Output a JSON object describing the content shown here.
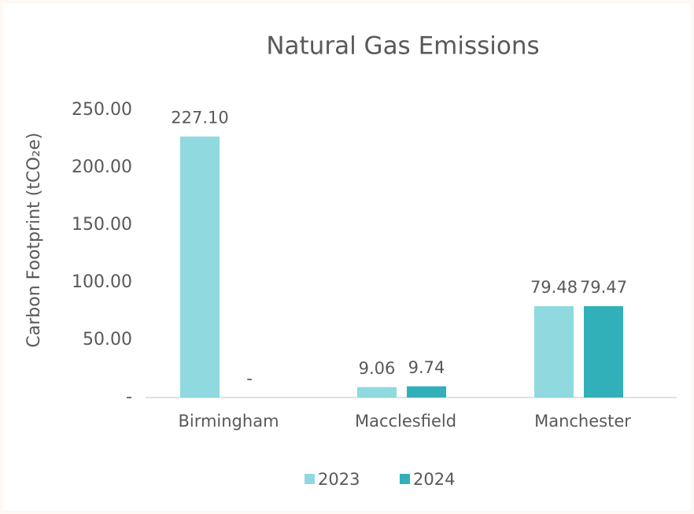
{
  "chart_data": {
    "type": "bar",
    "title": "Natural Gas Emissions",
    "y_label": "Carbon Footprint (tCO₂e)",
    "categories": [
      "Birmingham",
      "Macclesfield",
      "Manchester"
    ],
    "series": [
      {
        "name": "2023",
        "color": "#8fd9df",
        "values": [
          227.1,
          9.06,
          79.48
        ],
        "value_labels": [
          "227.10",
          "9.06",
          "79.48"
        ]
      },
      {
        "name": "2024",
        "color": "#31b0b9",
        "values": [
          0,
          9.74,
          79.47
        ],
        "value_labels": [
          "-",
          "9.74",
          "79.47"
        ]
      }
    ],
    "ylim": [
      0,
      250
    ],
    "yticks": [
      {
        "value": 0,
        "label": "-"
      },
      {
        "value": 50,
        "label": "50.00"
      },
      {
        "value": 100,
        "label": "100.00"
      },
      {
        "value": 150,
        "label": "150.00"
      },
      {
        "value": 200,
        "label": "200.00"
      },
      {
        "value": 250,
        "label": "250.00"
      }
    ],
    "grid": false,
    "legend": "bottom"
  }
}
